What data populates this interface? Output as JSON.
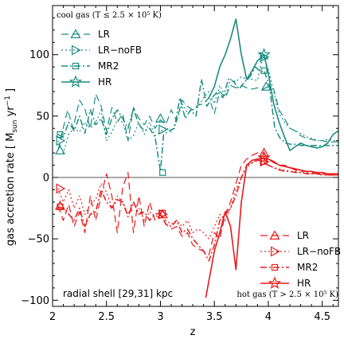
{
  "chart_data": {
    "type": "line",
    "xlabel": "z",
    "ylabel": "gas accretion rate [ M",
    "ylabel_sub": "sun",
    "ylabel_unit": " yr",
    "ylabel_sup": "−1",
    "ylabel_end": " ]",
    "xlim": [
      2.0,
      4.65
    ],
    "ylim": [
      -105,
      140
    ],
    "xticks": [
      2,
      2.5,
      3,
      3.5,
      4,
      4.5
    ],
    "xtick_labels": [
      "2",
      "2.5",
      "3",
      "3.5",
      "4",
      "4.5"
    ],
    "yticks": [
      -100,
      -50,
      0,
      50,
      100
    ],
    "ytick_labels": [
      "−100",
      "−50",
      "0",
      "50",
      "100"
    ],
    "zero_line": true,
    "colors": {
      "cool": "#1a8c80",
      "hot": "#e8191a"
    },
    "annotations": {
      "cool_title": "cool gas (T ≤ 2.5 × 10⁵ K)",
      "hot_title": "hot gas (T > 2.5 × 10⁵ K)",
      "shell": "radial shell [29,31] kpc"
    },
    "legend_labels": [
      "LR",
      "LR−noFB",
      "MR2",
      "HR"
    ],
    "groups": [
      {
        "group": "cool",
        "series": [
          {
            "name": "LR",
            "dash": "9,5",
            "width": 1.2,
            "marker": "triangle-up",
            "marker_points": [
              [
                2.07,
                22
              ],
              [
                3.0,
                48
              ],
              [
                3.98,
                74
              ]
            ],
            "x": [
              2.05,
              2.09,
              2.14,
              2.19,
              2.25,
              2.3,
              2.35,
              2.4,
              2.45,
              2.5,
              2.55,
              2.6,
              2.65,
              2.7,
              2.75,
              2.8,
              2.85,
              2.9,
              2.95,
              3.0,
              3.05,
              3.1,
              3.15,
              3.2,
              3.25,
              3.3,
              3.35,
              3.4,
              3.45,
              3.5,
              3.55,
              3.6,
              3.65,
              3.7,
              3.75,
              3.8,
              3.85,
              3.9,
              3.95,
              4.0,
              4.05,
              4.1,
              4.15,
              4.2,
              4.25,
              4.3,
              4.35,
              4.4,
              4.45,
              4.5,
              4.55,
              4.6,
              4.65
            ],
            "y": [
              22,
              37,
              55,
              40,
              63,
              56,
              40,
              68,
              58,
              38,
              57,
              45,
              52,
              30,
              57,
              48,
              43,
              50,
              40,
              47,
              43,
              55,
              46,
              63,
              58,
              55,
              59,
              60,
              65,
              52,
              70,
              65,
              75,
              73,
              75,
              73,
              72,
              73,
              72,
              74,
              72,
              55,
              48,
              40,
              38,
              34,
              32,
              31,
              30,
              30,
              29,
              29,
              29
            ]
          },
          {
            "name": "LR−noFB",
            "dash": "2,3",
            "width": 1.2,
            "marker": "triangle-right",
            "marker_points": [
              [
                2.07,
                30
              ],
              [
                3.02,
                39
              ],
              [
                3.96,
                98
              ]
            ],
            "x": [
              2.05,
              2.1,
              2.15,
              2.2,
              2.25,
              2.3,
              2.35,
              2.4,
              2.45,
              2.5,
              2.55,
              2.6,
              2.65,
              2.7,
              2.75,
              2.8,
              2.85,
              2.9,
              2.95,
              3.0,
              3.05,
              3.1,
              3.15,
              3.2,
              3.25,
              3.3,
              3.35,
              3.4,
              3.45,
              3.5,
              3.55,
              3.6,
              3.65,
              3.7,
              3.75,
              3.8,
              3.85,
              3.9,
              3.95,
              4.0,
              4.05,
              4.1,
              4.15,
              4.2,
              4.25,
              4.3,
              4.35,
              4.4,
              4.45,
              4.5,
              4.55,
              4.6,
              4.65
            ],
            "y": [
              30,
              20,
              35,
              40,
              37,
              45,
              40,
              45,
              55,
              30,
              37,
              47,
              45,
              30,
              34,
              45,
              35,
              45,
              34,
              37,
              41,
              37,
              46,
              60,
              53,
              55,
              58,
              65,
              70,
              60,
              75,
              66,
              80,
              78,
              82,
              80,
              80,
              79,
              100,
              88,
              70,
              52,
              45,
              40,
              38,
              36,
              33,
              32,
              30,
              30,
              31,
              30,
              30
            ]
          },
          {
            "name": "MR2",
            "dash": "8,3,2,3",
            "width": 1.5,
            "marker": "square",
            "marker_points": [
              [
                2.07,
                35
              ],
              [
                3.02,
                4
              ],
              [
                3.96,
                87
              ]
            ],
            "x": [
              2.05,
              2.1,
              2.15,
              2.2,
              2.25,
              2.3,
              2.35,
              2.4,
              2.45,
              2.5,
              2.55,
              2.6,
              2.65,
              2.7,
              2.75,
              2.8,
              2.85,
              2.9,
              2.95,
              3.0,
              3.03,
              3.08,
              3.13,
              3.18,
              3.23,
              3.28,
              3.33,
              3.38,
              3.43,
              3.48,
              3.53,
              3.58,
              3.63,
              3.68,
              3.73,
              3.78,
              3.83,
              3.88,
              3.93,
              3.96,
              4.01,
              4.06,
              4.11,
              4.16,
              4.21,
              4.26,
              4.31,
              4.36,
              4.41,
              4.46,
              4.51,
              4.56,
              4.61,
              4.65
            ],
            "y": [
              35,
              33,
              45,
              38,
              50,
              36,
              55,
              43,
              48,
              35,
              48,
              55,
              48,
              40,
              56,
              43,
              38,
              40,
              33,
              5,
              35,
              38,
              40,
              65,
              48,
              55,
              50,
              80,
              58,
              65,
              70,
              65,
              80,
              78,
              72,
              78,
              82,
              90,
              86,
              87,
              75,
              40,
              32,
              28,
              27,
              27,
              26,
              26,
              26,
              26,
              26,
              26,
              26,
              26
            ]
          },
          {
            "name": "HR",
            "dash": "",
            "width": 1.6,
            "marker": "star",
            "marker_points": [
              [
                3.96,
                100
              ]
            ],
            "x": [
              3.45,
              3.5,
              3.55,
              3.6,
              3.65,
              3.7,
              3.75,
              3.8,
              3.85,
              3.9,
              3.96,
              4.0,
              4.05,
              4.1,
              4.15,
              4.2,
              4.25,
              4.3,
              4.35,
              4.4,
              4.45,
              4.5,
              4.55,
              4.6,
              4.65
            ],
            "y": [
              65,
              74,
              90,
              100,
              113,
              129,
              100,
              80,
              87,
              95,
              100,
              85,
              60,
              45,
              33,
              22,
              25,
              28,
              26,
              25,
              24,
              25,
              28,
              35,
              38
            ]
          }
        ]
      },
      {
        "group": "hot",
        "series": [
          {
            "name": "LR",
            "dash": "9,5",
            "width": 1.2,
            "marker": "triangle-up",
            "marker_points": [
              [
                2.07,
                -23
              ],
              [
                3.02,
                -30
              ],
              [
                3.96,
                20
              ]
            ],
            "x": [
              2.05,
              2.1,
              2.15,
              2.2,
              2.25,
              2.3,
              2.35,
              2.4,
              2.45,
              2.5,
              2.55,
              2.6,
              2.65,
              2.7,
              2.75,
              2.8,
              2.85,
              2.9,
              2.95,
              3.0,
              3.05,
              3.1,
              3.15,
              3.2,
              3.25,
              3.3,
              3.35,
              3.4,
              3.45,
              3.5,
              3.55,
              3.6,
              3.65,
              3.7,
              3.75,
              3.8,
              3.85,
              3.9,
              3.95,
              4.0,
              4.05,
              4.1,
              4.15,
              4.2,
              4.25,
              4.3,
              4.35,
              4.4,
              4.45,
              4.5,
              4.55,
              4.6,
              4.65
            ],
            "y": [
              -23,
              -35,
              -22,
              -40,
              -28,
              -45,
              -15,
              -35,
              -15,
              3,
              -15,
              -45,
              -8,
              4,
              -45,
              -15,
              -40,
              -20,
              -35,
              -30,
              -38,
              -42,
              -40,
              -48,
              -45,
              -55,
              -58,
              -60,
              -63,
              -45,
              -50,
              -30,
              -20,
              -5,
              10,
              15,
              18,
              20,
              20,
              15,
              12,
              10,
              10,
              8,
              6,
              5,
              5,
              4,
              3,
              3,
              2,
              2,
              2
            ]
          },
          {
            "name": "LR−noFB",
            "dash": "2,3",
            "width": 1.2,
            "marker": "triangle-right",
            "marker_points": [
              [
                2.07,
                -9
              ],
              [
                3.02,
                -30
              ],
              [
                3.96,
                13
              ]
            ],
            "x": [
              2.05,
              2.1,
              2.15,
              2.2,
              2.25,
              2.3,
              2.35,
              2.4,
              2.45,
              2.5,
              2.55,
              2.6,
              2.65,
              2.7,
              2.75,
              2.8,
              2.85,
              2.9,
              2.95,
              3.0,
              3.05,
              3.1,
              3.15,
              3.2,
              3.25,
              3.3,
              3.35,
              3.4,
              3.45,
              3.5,
              3.55,
              3.6,
              3.65,
              3.7,
              3.75,
              3.8,
              3.85,
              3.9,
              3.95,
              4.0,
              4.05,
              4.1,
              4.15,
              4.2,
              4.25,
              4.3,
              4.35,
              4.4,
              4.45,
              4.5,
              4.55,
              4.6,
              4.65
            ],
            "y": [
              -9,
              -20,
              -10,
              -25,
              -15,
              -30,
              -22,
              -18,
              -5,
              -12,
              -25,
              -15,
              -20,
              -30,
              -20,
              -25,
              -35,
              -28,
              -32,
              -30,
              -35,
              -38,
              -35,
              -40,
              -35,
              -45,
              -42,
              -45,
              -50,
              -40,
              -30,
              -35,
              -25,
              -10,
              0,
              8,
              12,
              15,
              13,
              10,
              8,
              7,
              6,
              5,
              5,
              4,
              4,
              3,
              3,
              3,
              2,
              2,
              2
            ]
          },
          {
            "name": "MR2",
            "dash": "8,3,2,3",
            "width": 1.5,
            "marker": "square",
            "marker_points": [
              [
                2.07,
                -24
              ],
              [
                3.02,
                -29
              ],
              [
                3.96,
                13
              ]
            ],
            "x": [
              2.05,
              2.1,
              2.15,
              2.2,
              2.25,
              2.3,
              2.35,
              2.4,
              2.45,
              2.5,
              2.55,
              2.6,
              2.65,
              2.7,
              2.75,
              2.8,
              2.85,
              2.9,
              2.95,
              3.0,
              3.05,
              3.1,
              3.15,
              3.2,
              3.25,
              3.3,
              3.35,
              3.4,
              3.45,
              3.5,
              3.55,
              3.6,
              3.65,
              3.7,
              3.75,
              3.8,
              3.85,
              3.9,
              3.95,
              4.0,
              4.05,
              4.1,
              4.15,
              4.2,
              4.25,
              4.3,
              4.35,
              4.4,
              4.45,
              4.5,
              4.55,
              4.6,
              4.65
            ],
            "y": [
              -24,
              -25,
              -30,
              -35,
              -25,
              -40,
              -30,
              -28,
              -10,
              -20,
              -25,
              -18,
              -20,
              -32,
              -20,
              -30,
              -28,
              -35,
              -30,
              -29,
              -38,
              -40,
              -35,
              -45,
              -42,
              -50,
              -55,
              -60,
              -68,
              -55,
              -35,
              -30,
              -25,
              -15,
              0,
              10,
              12,
              14,
              13,
              10,
              8,
              6,
              5,
              5,
              4,
              4,
              3,
              3,
              3,
              2,
              2,
              2,
              2
            ]
          },
          {
            "name": "HR",
            "dash": "",
            "width": 1.6,
            "marker": "star",
            "marker_points": [
              [
                3.96,
                16
              ]
            ],
            "x": [
              3.42,
              3.5,
              3.55,
              3.6,
              3.65,
              3.7,
              3.75,
              3.8,
              3.85,
              3.9,
              3.96,
              4.0,
              4.05,
              4.1,
              4.15,
              4.2,
              4.25,
              4.3,
              4.35,
              4.4,
              4.45,
              4.5,
              4.55,
              4.6,
              4.65
            ],
            "y": [
              -98,
              -60,
              -45,
              -28,
              -40,
              -75,
              -20,
              10,
              14,
              15,
              16,
              15,
              13,
              10,
              9,
              8,
              7,
              6,
              5,
              5,
              4,
              4,
              3,
              3,
              3
            ]
          }
        ]
      }
    ]
  }
}
